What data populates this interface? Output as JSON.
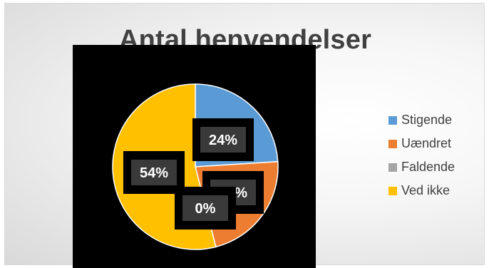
{
  "chart_data": {
    "type": "pie",
    "title": "Antal henvendelser",
    "categories": [
      "Stigende",
      "Uændret",
      "Faldende",
      "Ved ikke"
    ],
    "values": [
      24,
      22,
      0,
      54
    ],
    "data_labels": [
      "24%",
      "22%",
      "0%",
      "54%"
    ],
    "colors": [
      "#5B9BD5",
      "#ED7D31",
      "#A5A5A5",
      "#FFC000"
    ],
    "legend_position": "right",
    "start_angle_deg": 0,
    "direction": "clockwise"
  }
}
